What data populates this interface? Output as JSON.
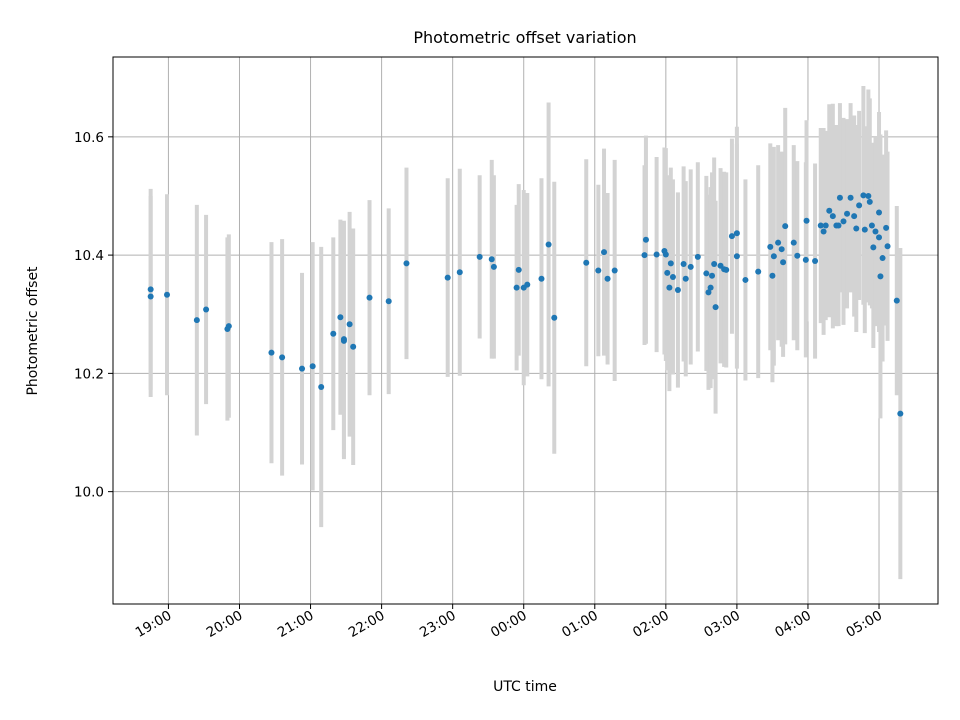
{
  "chart_data": {
    "type": "scatter",
    "title": "Photometric offset variation",
    "xlabel": "UTC time",
    "ylabel": "Photometric offset",
    "x_ticks": [
      "19:00",
      "20:00",
      "21:00",
      "22:00",
      "23:00",
      "00:00",
      "01:00",
      "02:00",
      "03:00",
      "04:00",
      "05:00"
    ],
    "x_tick_hours": [
      19,
      20,
      21,
      22,
      23,
      24,
      25,
      26,
      27,
      28,
      29
    ],
    "y_ticks": [
      "10.0",
      "10.2",
      "10.4",
      "10.6"
    ],
    "y_tick_values": [
      10.0,
      10.2,
      10.4,
      10.6
    ],
    "xlim": [
      18.22,
      29.83
    ],
    "ylim": [
      9.81,
      10.735
    ],
    "grid": true,
    "colors": {
      "point": "#1f77b4",
      "errorbar": "#d3d3d3",
      "grid": "#b0b0b0"
    },
    "points": [
      [
        18.75,
        10.342,
        0.17
      ],
      [
        18.75,
        10.33,
        0.17
      ],
      [
        18.98,
        10.333,
        0.17
      ],
      [
        19.4,
        10.29,
        0.195
      ],
      [
        19.53,
        10.308,
        0.16
      ],
      [
        19.83,
        10.275,
        0.155
      ],
      [
        19.85,
        10.28,
        0.155
      ],
      [
        20.45,
        10.235,
        0.187
      ],
      [
        20.6,
        10.227,
        0.2
      ],
      [
        20.88,
        10.208,
        0.162
      ],
      [
        21.03,
        10.212,
        0.21
      ],
      [
        21.15,
        10.177,
        0.237
      ],
      [
        21.32,
        10.267,
        0.163
      ],
      [
        21.42,
        10.295,
        0.165
      ],
      [
        21.47,
        10.258,
        0.2
      ],
      [
        21.47,
        10.255,
        0.2
      ],
      [
        21.55,
        10.283,
        0.19
      ],
      [
        21.6,
        10.245,
        0.2
      ],
      [
        21.83,
        10.328,
        0.165
      ],
      [
        22.1,
        10.322,
        0.157
      ],
      [
        22.35,
        10.386,
        0.162
      ],
      [
        22.93,
        10.362,
        0.168
      ],
      [
        23.1,
        10.371,
        0.175
      ],
      [
        23.38,
        10.397,
        0.138
      ],
      [
        23.55,
        10.393,
        0.168
      ],
      [
        23.58,
        10.38,
        0.155
      ],
      [
        23.9,
        10.345,
        0.14
      ],
      [
        23.93,
        10.375,
        0.145
      ],
      [
        24.0,
        10.345,
        0.165
      ],
      [
        24.05,
        10.35,
        0.155
      ],
      [
        24.25,
        10.36,
        0.17
      ],
      [
        24.35,
        10.418,
        0.24
      ],
      [
        24.43,
        10.294,
        0.23
      ],
      [
        24.88,
        10.387,
        0.175
      ],
      [
        25.05,
        10.374,
        0.145
      ],
      [
        25.13,
        10.405,
        0.175
      ],
      [
        25.18,
        10.36,
        0.145
      ],
      [
        25.28,
        10.374,
        0.187
      ],
      [
        25.7,
        10.4,
        0.152
      ],
      [
        25.72,
        10.426,
        0.176
      ],
      [
        25.87,
        10.401,
        0.165
      ],
      [
        25.98,
        10.407,
        0.175
      ],
      [
        26.0,
        10.401,
        0.18
      ],
      [
        26.02,
        10.37,
        0.165
      ],
      [
        26.05,
        10.345,
        0.175
      ],
      [
        26.07,
        10.386,
        0.162
      ],
      [
        26.1,
        10.363,
        0.165
      ],
      [
        26.17,
        10.341,
        0.165
      ],
      [
        26.25,
        10.385,
        0.165
      ],
      [
        26.28,
        10.36,
        0.165
      ],
      [
        26.35,
        10.38,
        0.165
      ],
      [
        26.45,
        10.397,
        0.16
      ],
      [
        26.57,
        10.369,
        0.165
      ],
      [
        26.6,
        10.337,
        0.165
      ],
      [
        26.63,
        10.345,
        0.17
      ],
      [
        26.65,
        10.365,
        0.175
      ],
      [
        26.68,
        10.385,
        0.18
      ],
      [
        26.7,
        10.312,
        0.18
      ],
      [
        26.77,
        10.382,
        0.165
      ],
      [
        26.82,
        10.376,
        0.165
      ],
      [
        26.85,
        10.375,
        0.165
      ],
      [
        26.93,
        10.432,
        0.165
      ],
      [
        27.0,
        10.437,
        0.18
      ],
      [
        27.0,
        10.398,
        0.19
      ],
      [
        27.12,
        10.358,
        0.17
      ],
      [
        27.3,
        10.372,
        0.18
      ],
      [
        27.47,
        10.414,
        0.175
      ],
      [
        27.5,
        10.365,
        0.18
      ],
      [
        27.52,
        10.398,
        0.185
      ],
      [
        27.58,
        10.421,
        0.165
      ],
      [
        27.63,
        10.41,
        0.165
      ],
      [
        27.65,
        10.388,
        0.16
      ],
      [
        27.68,
        10.449,
        0.2
      ],
      [
        27.8,
        10.421,
        0.165
      ],
      [
        27.85,
        10.399,
        0.16
      ],
      [
        27.97,
        10.392,
        0.165
      ],
      [
        27.98,
        10.458,
        0.17
      ],
      [
        28.1,
        10.39,
        0.165
      ],
      [
        28.18,
        10.45,
        0.165
      ],
      [
        28.22,
        10.44,
        0.175
      ],
      [
        28.25,
        10.45,
        0.16
      ],
      [
        28.3,
        10.475,
        0.18
      ],
      [
        28.35,
        10.466,
        0.19
      ],
      [
        28.4,
        10.45,
        0.17
      ],
      [
        28.43,
        10.45,
        0.17
      ],
      [
        28.45,
        10.497,
        0.16
      ],
      [
        28.5,
        10.457,
        0.175
      ],
      [
        28.55,
        10.47,
        0.16
      ],
      [
        28.6,
        10.497,
        0.16
      ],
      [
        28.65,
        10.466,
        0.17
      ],
      [
        28.68,
        10.445,
        0.175
      ],
      [
        28.72,
        10.484,
        0.16
      ],
      [
        28.78,
        10.501,
        0.185
      ],
      [
        28.8,
        10.443,
        0.175
      ],
      [
        28.85,
        10.5,
        0.18
      ],
      [
        28.87,
        10.49,
        0.175
      ],
      [
        28.9,
        10.45,
        0.14
      ],
      [
        28.92,
        10.413,
        0.17
      ],
      [
        28.95,
        10.44,
        0.16
      ],
      [
        29.0,
        10.472,
        0.17
      ],
      [
        29.02,
        10.364,
        0.24
      ],
      [
        29.05,
        10.395,
        0.175
      ],
      [
        29.1,
        10.446,
        0.165
      ],
      [
        29.12,
        10.415,
        0.16
      ],
      [
        29.25,
        10.323,
        0.16
      ],
      [
        29.3,
        10.132,
        0.28
      ],
      [
        29.0,
        10.43,
        0.16
      ]
    ]
  }
}
